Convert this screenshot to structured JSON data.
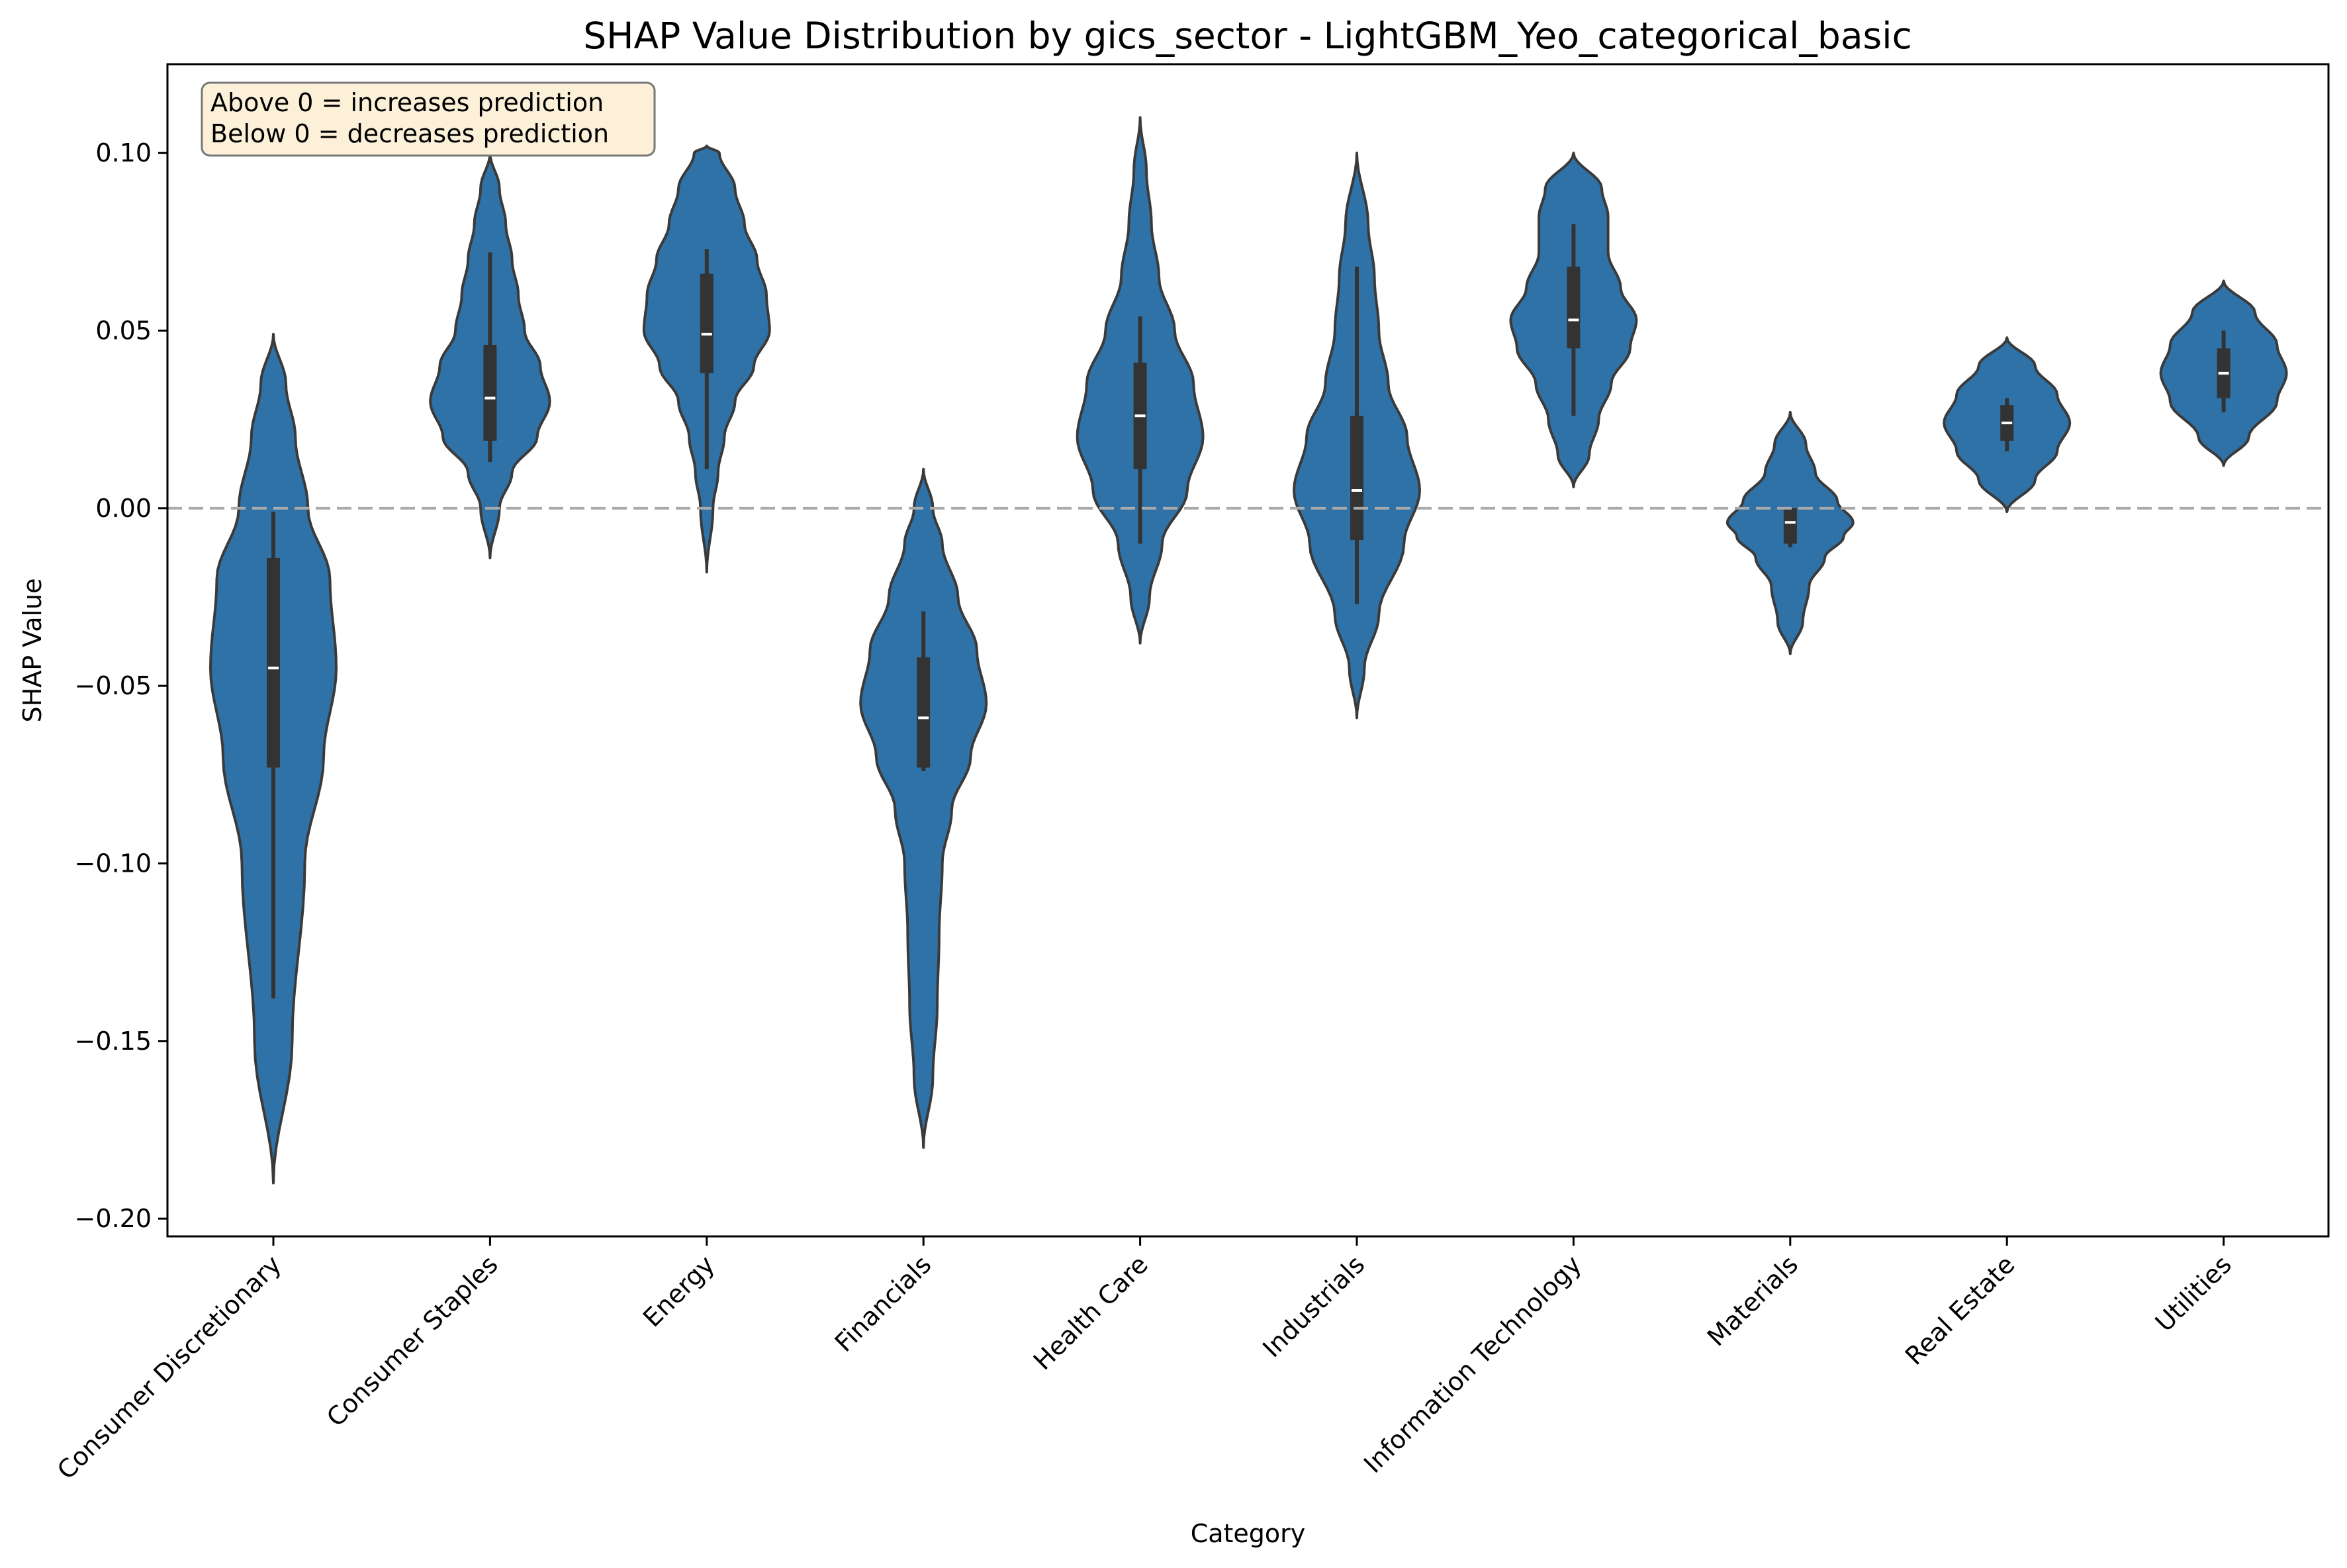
{
  "chart_data": {
    "type": "violin",
    "title": "SHAP Value Distribution by gics_sector - LightGBM_Yeo_categorical_basic",
    "xlabel": "Category",
    "ylabel": "SHAP Value",
    "ylim": [
      -0.205,
      0.125
    ],
    "yticks": [
      -0.2,
      -0.15,
      -0.1,
      -0.05,
      0.0,
      0.05,
      0.1
    ],
    "ytick_labels": [
      "−0.20",
      "−0.15",
      "−0.10",
      "−0.05",
      "0.00",
      "0.05",
      "0.10"
    ],
    "reference_line": 0,
    "grid": false,
    "annotation": [
      "Above 0 = increases prediction",
      "Below 0 = decreases prediction"
    ],
    "colors": {
      "violin_fill": "#2f72a8",
      "violin_edge": "#3a3a3a",
      "box": "#333333",
      "median": "#ffffff",
      "ref_line": "#aaaaaa",
      "note_bg": "#fcf0d8"
    },
    "categories": [
      "Consumer Discretionary",
      "Consumer Staples",
      "Energy",
      "Financials",
      "Health Care",
      "Industrials",
      "Information Technology",
      "Materials",
      "Real Estate",
      "Utilities"
    ],
    "series": [
      {
        "category": "Consumer Discretionary",
        "min": -0.19,
        "max": 0.049,
        "whisker_low": -0.138,
        "whisker_high": -0.001,
        "q1": -0.073,
        "median": -0.045,
        "q3": -0.014,
        "density": [
          [
            -0.19,
            0.0
          ],
          [
            -0.15,
            0.3
          ],
          [
            -0.1,
            0.5
          ],
          [
            -0.07,
            0.8
          ],
          [
            -0.045,
            1.0
          ],
          [
            -0.02,
            0.9
          ],
          [
            0.0,
            0.55
          ],
          [
            0.02,
            0.35
          ],
          [
            0.035,
            0.2
          ],
          [
            0.049,
            0.0
          ]
        ]
      },
      {
        "category": "Consumer Staples",
        "min": -0.014,
        "max": 0.1,
        "whisker_low": 0.013,
        "whisker_high": 0.072,
        "q1": 0.019,
        "median": 0.031,
        "q3": 0.046,
        "density": [
          [
            -0.014,
            0.0
          ],
          [
            0.0,
            0.15
          ],
          [
            0.01,
            0.35
          ],
          [
            0.02,
            0.75
          ],
          [
            0.03,
            0.95
          ],
          [
            0.04,
            0.8
          ],
          [
            0.05,
            0.55
          ],
          [
            0.06,
            0.45
          ],
          [
            0.07,
            0.35
          ],
          [
            0.08,
            0.25
          ],
          [
            0.09,
            0.15
          ],
          [
            0.1,
            0.0
          ]
        ]
      },
      {
        "category": "Energy",
        "min": -0.018,
        "max": 0.102,
        "whisker_low": 0.011,
        "whisker_high": 0.073,
        "q1": 0.038,
        "median": 0.049,
        "q3": 0.066,
        "density": [
          [
            -0.018,
            0.0
          ],
          [
            0.0,
            0.1
          ],
          [
            0.01,
            0.18
          ],
          [
            0.02,
            0.28
          ],
          [
            0.03,
            0.45
          ],
          [
            0.04,
            0.75
          ],
          [
            0.05,
            1.0
          ],
          [
            0.06,
            0.95
          ],
          [
            0.07,
            0.8
          ],
          [
            0.08,
            0.6
          ],
          [
            0.09,
            0.45
          ],
          [
            0.1,
            0.2
          ],
          [
            0.102,
            0.0
          ]
        ]
      },
      {
        "category": "Financials",
        "min": -0.18,
        "max": 0.011,
        "whisker_low": -0.074,
        "whisker_high": -0.029,
        "q1": -0.073,
        "median": -0.059,
        "q3": -0.042,
        "density": [
          [
            -0.18,
            0.0
          ],
          [
            -0.16,
            0.15
          ],
          [
            -0.14,
            0.22
          ],
          [
            -0.12,
            0.25
          ],
          [
            -0.1,
            0.3
          ],
          [
            -0.085,
            0.45
          ],
          [
            -0.07,
            0.75
          ],
          [
            -0.055,
            1.0
          ],
          [
            -0.04,
            0.85
          ],
          [
            -0.025,
            0.55
          ],
          [
            -0.01,
            0.3
          ],
          [
            0.0,
            0.15
          ],
          [
            0.011,
            0.0
          ]
        ]
      },
      {
        "category": "Health Care",
        "min": -0.038,
        "max": 0.11,
        "whisker_low": -0.01,
        "whisker_high": 0.054,
        "q1": 0.011,
        "median": 0.026,
        "q3": 0.041,
        "density": [
          [
            -0.038,
            0.0
          ],
          [
            -0.025,
            0.15
          ],
          [
            -0.01,
            0.35
          ],
          [
            0.005,
            0.75
          ],
          [
            0.02,
            1.0
          ],
          [
            0.035,
            0.85
          ],
          [
            0.05,
            0.55
          ],
          [
            0.065,
            0.3
          ],
          [
            0.08,
            0.18
          ],
          [
            0.095,
            0.1
          ],
          [
            0.11,
            0.0
          ]
        ]
      },
      {
        "category": "Industrials",
        "min": -0.059,
        "max": 0.1,
        "whisker_low": -0.027,
        "whisker_high": 0.068,
        "q1": -0.009,
        "median": 0.005,
        "q3": 0.026,
        "density": [
          [
            -0.059,
            0.0
          ],
          [
            -0.045,
            0.12
          ],
          [
            -0.03,
            0.35
          ],
          [
            -0.01,
            0.75
          ],
          [
            0.005,
            1.0
          ],
          [
            0.02,
            0.8
          ],
          [
            0.035,
            0.5
          ],
          [
            0.05,
            0.35
          ],
          [
            0.065,
            0.28
          ],
          [
            0.08,
            0.18
          ],
          [
            0.1,
            0.0
          ]
        ]
      },
      {
        "category": "Information Technology",
        "min": 0.006,
        "max": 0.1,
        "whisker_low": 0.026,
        "whisker_high": 0.08,
        "q1": 0.045,
        "median": 0.053,
        "q3": 0.068,
        "density": [
          [
            0.006,
            0.0
          ],
          [
            0.015,
            0.25
          ],
          [
            0.025,
            0.4
          ],
          [
            0.035,
            0.6
          ],
          [
            0.045,
            0.9
          ],
          [
            0.053,
            1.0
          ],
          [
            0.062,
            0.75
          ],
          [
            0.072,
            0.55
          ],
          [
            0.082,
            0.55
          ],
          [
            0.09,
            0.45
          ],
          [
            0.1,
            0.0
          ]
        ]
      },
      {
        "category": "Materials",
        "min": -0.041,
        "max": 0.027,
        "whisker_low": -0.011,
        "whisker_high": 0.0,
        "q1": -0.01,
        "median": -0.004,
        "q3": 0.0,
        "density": [
          [
            -0.041,
            0.0
          ],
          [
            -0.032,
            0.2
          ],
          [
            -0.022,
            0.3
          ],
          [
            -0.014,
            0.55
          ],
          [
            -0.008,
            0.85
          ],
          [
            -0.004,
            1.0
          ],
          [
            0.002,
            0.75
          ],
          [
            0.01,
            0.4
          ],
          [
            0.018,
            0.25
          ],
          [
            0.027,
            0.0
          ]
        ]
      },
      {
        "category": "Real Estate",
        "min": -0.001,
        "max": 0.048,
        "whisker_low": 0.016,
        "whisker_high": 0.031,
        "q1": 0.019,
        "median": 0.024,
        "q3": 0.029,
        "density": [
          [
            -0.001,
            0.0
          ],
          [
            0.008,
            0.45
          ],
          [
            0.016,
            0.8
          ],
          [
            0.024,
            1.0
          ],
          [
            0.032,
            0.8
          ],
          [
            0.04,
            0.45
          ],
          [
            0.048,
            0.0
          ]
        ]
      },
      {
        "category": "Utilities",
        "min": 0.012,
        "max": 0.064,
        "whisker_low": 0.027,
        "whisker_high": 0.05,
        "q1": 0.031,
        "median": 0.038,
        "q3": 0.045,
        "density": [
          [
            0.012,
            0.0
          ],
          [
            0.02,
            0.4
          ],
          [
            0.03,
            0.85
          ],
          [
            0.038,
            1.0
          ],
          [
            0.046,
            0.85
          ],
          [
            0.055,
            0.5
          ],
          [
            0.064,
            0.0
          ]
        ]
      }
    ]
  }
}
